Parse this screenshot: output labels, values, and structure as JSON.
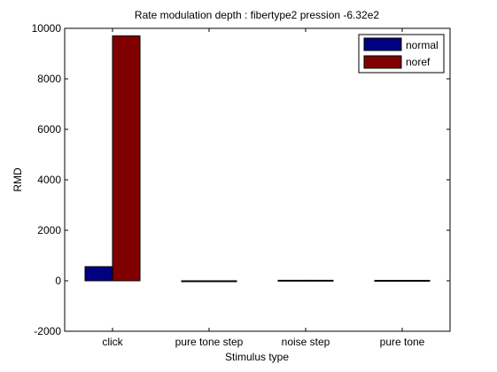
{
  "chart_data": {
    "type": "bar",
    "title": "Rate modulation depth : fibertype2 pression -6.32e2",
    "xlabel": "Stimulus type",
    "ylabel": "RMD",
    "categories": [
      "click",
      "pure tone step",
      "noise step",
      "pure tone"
    ],
    "series": [
      {
        "name": "normal",
        "color": "#000080",
        "values": [
          560,
          0,
          20,
          15
        ]
      },
      {
        "name": "noref",
        "color": "#800000",
        "values": [
          9700,
          0,
          20,
          15
        ]
      }
    ],
    "ylim": [
      -2000,
      10000
    ],
    "yticks": [
      -2000,
      0,
      2000,
      4000,
      6000,
      8000,
      10000
    ],
    "grid": false,
    "legend_position": "top-right"
  }
}
